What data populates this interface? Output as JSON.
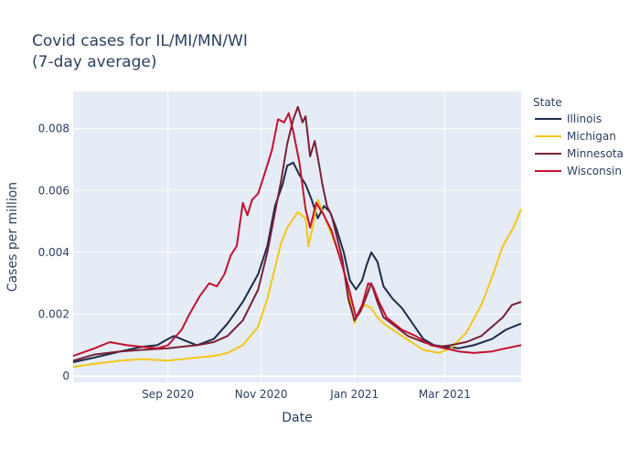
{
  "chart_data": {
    "type": "line",
    "title": [
      "Covid cases for IL/MI/MN/WI",
      "(7-day average)"
    ],
    "xlabel": "Date",
    "ylabel": "Cases per million",
    "xlim": [
      "2020-07-01",
      "2021-04-20"
    ],
    "ylim": [
      -0.0002,
      0.0092
    ],
    "x_ticks": [
      {
        "date": "2020-09-01",
        "label": "Sep 2020"
      },
      {
        "date": "2020-11-01",
        "label": "Nov 2020"
      },
      {
        "date": "2021-01-01",
        "label": "Jan 2021"
      },
      {
        "date": "2021-03-01",
        "label": "Mar 2021"
      }
    ],
    "y_ticks": [
      {
        "value": 0,
        "label": "0"
      },
      {
        "value": 0.002,
        "label": "0.002"
      },
      {
        "value": 0.004,
        "label": "0.004"
      },
      {
        "value": 0.006,
        "label": "0.006"
      },
      {
        "value": 0.008,
        "label": "0.008"
      }
    ],
    "grid": true,
    "legend": {
      "title": "State",
      "position": "top-right"
    },
    "series": [
      {
        "name": "Illinois",
        "color": "#1c2b4b",
        "points": [
          [
            "2020-07-01",
            0.00045
          ],
          [
            "2020-07-15",
            0.0006
          ],
          [
            "2020-08-01",
            0.0008
          ],
          [
            "2020-08-15",
            0.00095
          ],
          [
            "2020-08-25",
            0.001
          ],
          [
            "2020-09-01",
            0.0012
          ],
          [
            "2020-09-05",
            0.0013
          ],
          [
            "2020-09-12",
            0.00115
          ],
          [
            "2020-09-20",
            0.001
          ],
          [
            "2020-10-01",
            0.0012
          ],
          [
            "2020-10-10",
            0.0017
          ],
          [
            "2020-10-20",
            0.0024
          ],
          [
            "2020-10-30",
            0.0033
          ],
          [
            "2020-11-05",
            0.0042
          ],
          [
            "2020-11-10",
            0.0055
          ],
          [
            "2020-11-15",
            0.0062
          ],
          [
            "2020-11-18",
            0.0068
          ],
          [
            "2020-11-22",
            0.0069
          ],
          [
            "2020-11-26",
            0.0065
          ],
          [
            "2020-11-30",
            0.0062
          ],
          [
            "2020-12-04",
            0.0057
          ],
          [
            "2020-12-08",
            0.0051
          ],
          [
            "2020-12-12",
            0.0055
          ],
          [
            "2020-12-16",
            0.0053
          ],
          [
            "2020-12-20",
            0.0048
          ],
          [
            "2020-12-25",
            0.004
          ],
          [
            "2020-12-29",
            0.0031
          ],
          [
            "2021-01-02",
            0.0028
          ],
          [
            "2021-01-06",
            0.0031
          ],
          [
            "2021-01-09",
            0.0036
          ],
          [
            "2021-01-12",
            0.004
          ],
          [
            "2021-01-16",
            0.0037
          ],
          [
            "2021-01-20",
            0.0029
          ],
          [
            "2021-01-26",
            0.0025
          ],
          [
            "2021-02-01",
            0.0022
          ],
          [
            "2021-02-08",
            0.0017
          ],
          [
            "2021-02-15",
            0.0012
          ],
          [
            "2021-02-22",
            0.001
          ],
          [
            "2021-03-01",
            0.00095
          ],
          [
            "2021-03-10",
            0.0009
          ],
          [
            "2021-03-20",
            0.001
          ],
          [
            "2021-04-01",
            0.0012
          ],
          [
            "2021-04-10",
            0.0015
          ],
          [
            "2021-04-20",
            0.0017
          ]
        ]
      },
      {
        "name": "Michigan",
        "color": "#f5c518",
        "points": [
          [
            "2020-07-01",
            0.0003
          ],
          [
            "2020-07-15",
            0.0004
          ],
          [
            "2020-08-01",
            0.0005
          ],
          [
            "2020-08-15",
            0.00055
          ],
          [
            "2020-09-01",
            0.0005
          ],
          [
            "2020-09-10",
            0.00055
          ],
          [
            "2020-09-20",
            0.0006
          ],
          [
            "2020-10-01",
            0.00065
          ],
          [
            "2020-10-10",
            0.00075
          ],
          [
            "2020-10-20",
            0.001
          ],
          [
            "2020-10-30",
            0.0016
          ],
          [
            "2020-11-05",
            0.0025
          ],
          [
            "2020-11-10",
            0.0035
          ],
          [
            "2020-11-14",
            0.0043
          ],
          [
            "2020-11-18",
            0.0048
          ],
          [
            "2020-11-25",
            0.0053
          ],
          [
            "2020-11-30",
            0.0051
          ],
          [
            "2020-12-02",
            0.0042
          ],
          [
            "2020-12-05",
            0.0049
          ],
          [
            "2020-12-08",
            0.0057
          ],
          [
            "2020-12-12",
            0.0052
          ],
          [
            "2020-12-16",
            0.0047
          ],
          [
            "2020-12-20",
            0.0042
          ],
          [
            "2020-12-24",
            0.0036
          ],
          [
            "2020-12-28",
            0.0028
          ],
          [
            "2021-01-01",
            0.0017
          ],
          [
            "2021-01-04",
            0.0021
          ],
          [
            "2021-01-08",
            0.0023
          ],
          [
            "2021-01-12",
            0.0022
          ],
          [
            "2021-01-16",
            0.0019
          ],
          [
            "2021-01-20",
            0.0017
          ],
          [
            "2021-02-01",
            0.0013
          ],
          [
            "2021-02-15",
            0.00085
          ],
          [
            "2021-02-25",
            0.00075
          ],
          [
            "2021-03-05",
            0.0009
          ],
          [
            "2021-03-15",
            0.0014
          ],
          [
            "2021-03-25",
            0.0023
          ],
          [
            "2021-04-01",
            0.0032
          ],
          [
            "2021-04-08",
            0.0042
          ],
          [
            "2021-04-15",
            0.0048
          ],
          [
            "2021-04-20",
            0.0054
          ]
        ]
      },
      {
        "name": "Minnesota",
        "color": "#7a1f33",
        "points": [
          [
            "2020-07-01",
            0.0005
          ],
          [
            "2020-07-15",
            0.0007
          ],
          [
            "2020-08-01",
            0.0008
          ],
          [
            "2020-08-15",
            0.00085
          ],
          [
            "2020-09-01",
            0.0009
          ],
          [
            "2020-09-10",
            0.00095
          ],
          [
            "2020-09-20",
            0.001
          ],
          [
            "2020-10-01",
            0.0011
          ],
          [
            "2020-10-10",
            0.0013
          ],
          [
            "2020-10-20",
            0.0018
          ],
          [
            "2020-10-30",
            0.0028
          ],
          [
            "2020-11-05",
            0.004
          ],
          [
            "2020-11-10",
            0.0053
          ],
          [
            "2020-11-14",
            0.0063
          ],
          [
            "2020-11-18",
            0.0075
          ],
          [
            "2020-11-22",
            0.0083
          ],
          [
            "2020-11-25",
            0.0087
          ],
          [
            "2020-11-28",
            0.0082
          ],
          [
            "2020-11-30",
            0.0084
          ],
          [
            "2020-12-03",
            0.0071
          ],
          [
            "2020-12-06",
            0.0076
          ],
          [
            "2020-12-09",
            0.0068
          ],
          [
            "2020-12-11",
            0.0062
          ],
          [
            "2020-12-14",
            0.0055
          ],
          [
            "2020-12-17",
            0.0052
          ],
          [
            "2020-12-20",
            0.0046
          ],
          [
            "2020-12-24",
            0.0038
          ],
          [
            "2020-12-28",
            0.0025
          ],
          [
            "2021-01-01",
            0.0018
          ],
          [
            "2021-01-05",
            0.0021
          ],
          [
            "2021-01-09",
            0.0026
          ],
          [
            "2021-01-12",
            0.003
          ],
          [
            "2021-01-16",
            0.0024
          ],
          [
            "2021-01-20",
            0.0019
          ],
          [
            "2021-01-28",
            0.0016
          ],
          [
            "2021-02-05",
            0.0013
          ],
          [
            "2021-02-15",
            0.0011
          ],
          [
            "2021-02-25",
            0.00095
          ],
          [
            "2021-03-05",
            0.001
          ],
          [
            "2021-03-15",
            0.0011
          ],
          [
            "2021-03-25",
            0.0013
          ],
          [
            "2021-04-01",
            0.0016
          ],
          [
            "2021-04-08",
            0.0019
          ],
          [
            "2021-04-14",
            0.0023
          ],
          [
            "2021-04-20",
            0.0024
          ]
        ]
      },
      {
        "name": "Wisconsin",
        "color": "#c4102e",
        "points": [
          [
            "2020-07-01",
            0.00065
          ],
          [
            "2020-07-15",
            0.0009
          ],
          [
            "2020-07-25",
            0.0011
          ],
          [
            "2020-08-05",
            0.001
          ],
          [
            "2020-08-15",
            0.00095
          ],
          [
            "2020-08-25",
            0.0009
          ],
          [
            "2020-09-01",
            0.001
          ],
          [
            "2020-09-10",
            0.0015
          ],
          [
            "2020-09-15",
            0.002
          ],
          [
            "2020-09-22",
            0.0026
          ],
          [
            "2020-09-28",
            0.003
          ],
          [
            "2020-10-03",
            0.0029
          ],
          [
            "2020-10-08",
            0.0033
          ],
          [
            "2020-10-12",
            0.0039
          ],
          [
            "2020-10-16",
            0.0042
          ],
          [
            "2020-10-20",
            0.0056
          ],
          [
            "2020-10-23",
            0.0052
          ],
          [
            "2020-10-26",
            0.0057
          ],
          [
            "2020-10-30",
            0.0059
          ],
          [
            "2020-11-03",
            0.0065
          ],
          [
            "2020-11-08",
            0.0073
          ],
          [
            "2020-11-12",
            0.0083
          ],
          [
            "2020-11-16",
            0.0082
          ],
          [
            "2020-11-19",
            0.0085
          ],
          [
            "2020-11-22",
            0.0079
          ],
          [
            "2020-11-26",
            0.0069
          ],
          [
            "2020-11-30",
            0.0054
          ],
          [
            "2020-12-03",
            0.0048
          ],
          [
            "2020-12-07",
            0.0056
          ],
          [
            "2020-12-12",
            0.0052
          ],
          [
            "2020-12-17",
            0.0047
          ],
          [
            "2020-12-22",
            0.0039
          ],
          [
            "2020-12-28",
            0.0029
          ],
          [
            "2021-01-02",
            0.0019
          ],
          [
            "2021-01-06",
            0.0023
          ],
          [
            "2021-01-10",
            0.003
          ],
          [
            "2021-01-13",
            0.0029
          ],
          [
            "2021-01-17",
            0.0024
          ],
          [
            "2021-01-22",
            0.0019
          ],
          [
            "2021-02-01",
            0.0015
          ],
          [
            "2021-02-10",
            0.0013
          ],
          [
            "2021-02-20",
            0.001
          ],
          [
            "2021-03-01",
            0.0009
          ],
          [
            "2021-03-10",
            0.0008
          ],
          [
            "2021-03-20",
            0.00075
          ],
          [
            "2021-04-01",
            0.0008
          ],
          [
            "2021-04-10",
            0.0009
          ],
          [
            "2021-04-20",
            0.001
          ]
        ]
      }
    ]
  }
}
